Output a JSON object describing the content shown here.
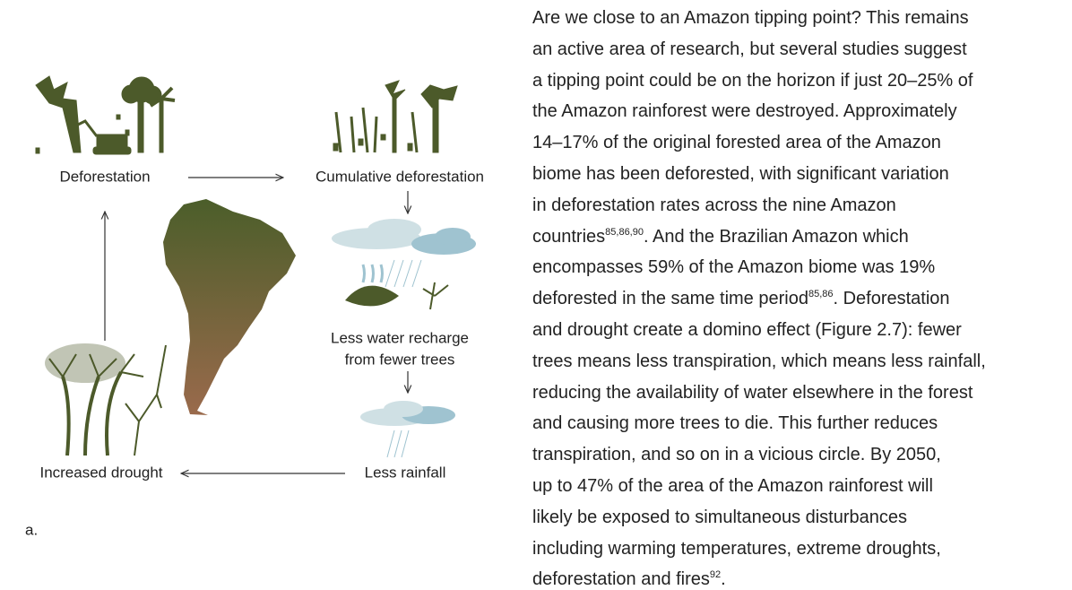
{
  "figure": {
    "labels": {
      "deforestation": "Deforestation",
      "cumulative": "Cumulative deforestation",
      "water": [
        "Less water recharge",
        "from fewer trees"
      ],
      "rainfall": "Less rainfall",
      "drought": "Increased drought"
    },
    "caption": "a."
  },
  "paragraph": {
    "lines": [
      [
        {
          "text": "Are we close to an Amazon tipping point? This remains"
        }
      ],
      [
        {
          "text": "an active area of research, but several studies suggest"
        }
      ],
      [
        {
          "text": "a tipping point could be on the horizon if just 20–25% of"
        }
      ],
      [
        {
          "text": "the Amazon rainforest were destroyed. Approximately"
        }
      ],
      [
        {
          "text": "14–17% of the original forested area of the Amazon"
        }
      ],
      [
        {
          "text": "biome has been deforested, with significant variation"
        }
      ],
      [
        {
          "text": "in deforestation rates across the nine Amazon"
        }
      ],
      [
        {
          "text": "countries"
        },
        {
          "sup": "85,86,90"
        },
        {
          "text": ". And the Brazilian Amazon which"
        }
      ],
      [
        {
          "text": "encompasses 59% of the Amazon biome was 19%"
        }
      ],
      [
        {
          "text": "deforested in the same time period"
        },
        {
          "sup": "85,86"
        },
        {
          "text": ". Deforestation"
        }
      ],
      [
        {
          "text": "and drought create a domino effect (Figure 2.7): fewer"
        }
      ],
      [
        {
          "text": "trees means less transpiration, which means less rainfall,"
        }
      ],
      [
        {
          "text": "reducing the availability of water elsewhere in the forest"
        }
      ],
      [
        {
          "text": "and causing more trees to die. This further reduces"
        }
      ],
      [
        {
          "text": "transpiration, and so on in a vicious circle. By 2050,"
        }
      ],
      [
        {
          "text": "up to 47% of the area of the Amazon rainforest will"
        }
      ],
      [
        {
          "text": "likely be exposed to simultaneous disturbances"
        }
      ],
      [
        {
          "text": "including warming temperatures, extreme droughts,"
        }
      ],
      [
        {
          "text": "deforestation and fires"
        },
        {
          "sup": "92"
        },
        {
          "text": "."
        }
      ]
    ]
  }
}
